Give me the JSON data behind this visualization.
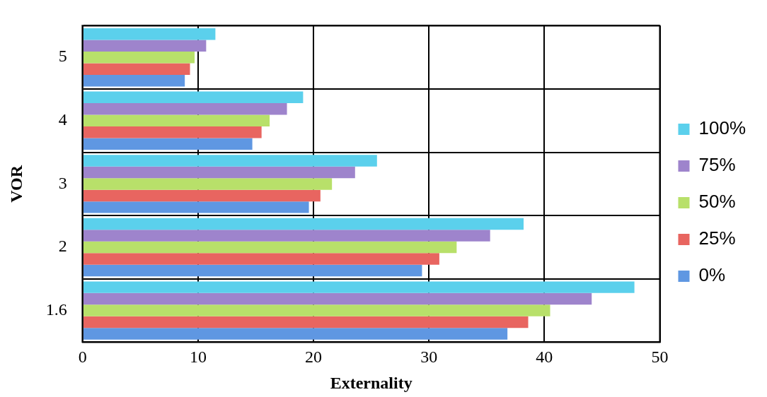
{
  "chart_data": {
    "type": "bar",
    "orientation": "horizontal",
    "xlabel": "Externality",
    "ylabel": "VOR",
    "categories": [
      "5",
      "4",
      "3",
      "2",
      "1.6"
    ],
    "series": [
      {
        "name": "100%",
        "color": "#5bd0ec",
        "values": [
          11.5,
          19.1,
          25.5,
          38.2,
          47.8
        ]
      },
      {
        "name": "75%",
        "color": "#9e84cc",
        "values": [
          10.7,
          17.7,
          23.6,
          35.3,
          44.1
        ]
      },
      {
        "name": "50%",
        "color": "#b8e06a",
        "values": [
          9.7,
          16.2,
          21.6,
          32.4,
          40.5
        ]
      },
      {
        "name": "25%",
        "color": "#e86560",
        "values": [
          9.3,
          15.5,
          20.6,
          30.9,
          38.6
        ]
      },
      {
        "name": "0%",
        "color": "#5f97e2",
        "values": [
          8.85,
          14.7,
          19.6,
          29.4,
          36.8
        ]
      }
    ],
    "xlim": [
      0,
      50
    ],
    "xticks": [
      0,
      10,
      20,
      30,
      40,
      50
    ],
    "grid": true,
    "legend": "right"
  }
}
